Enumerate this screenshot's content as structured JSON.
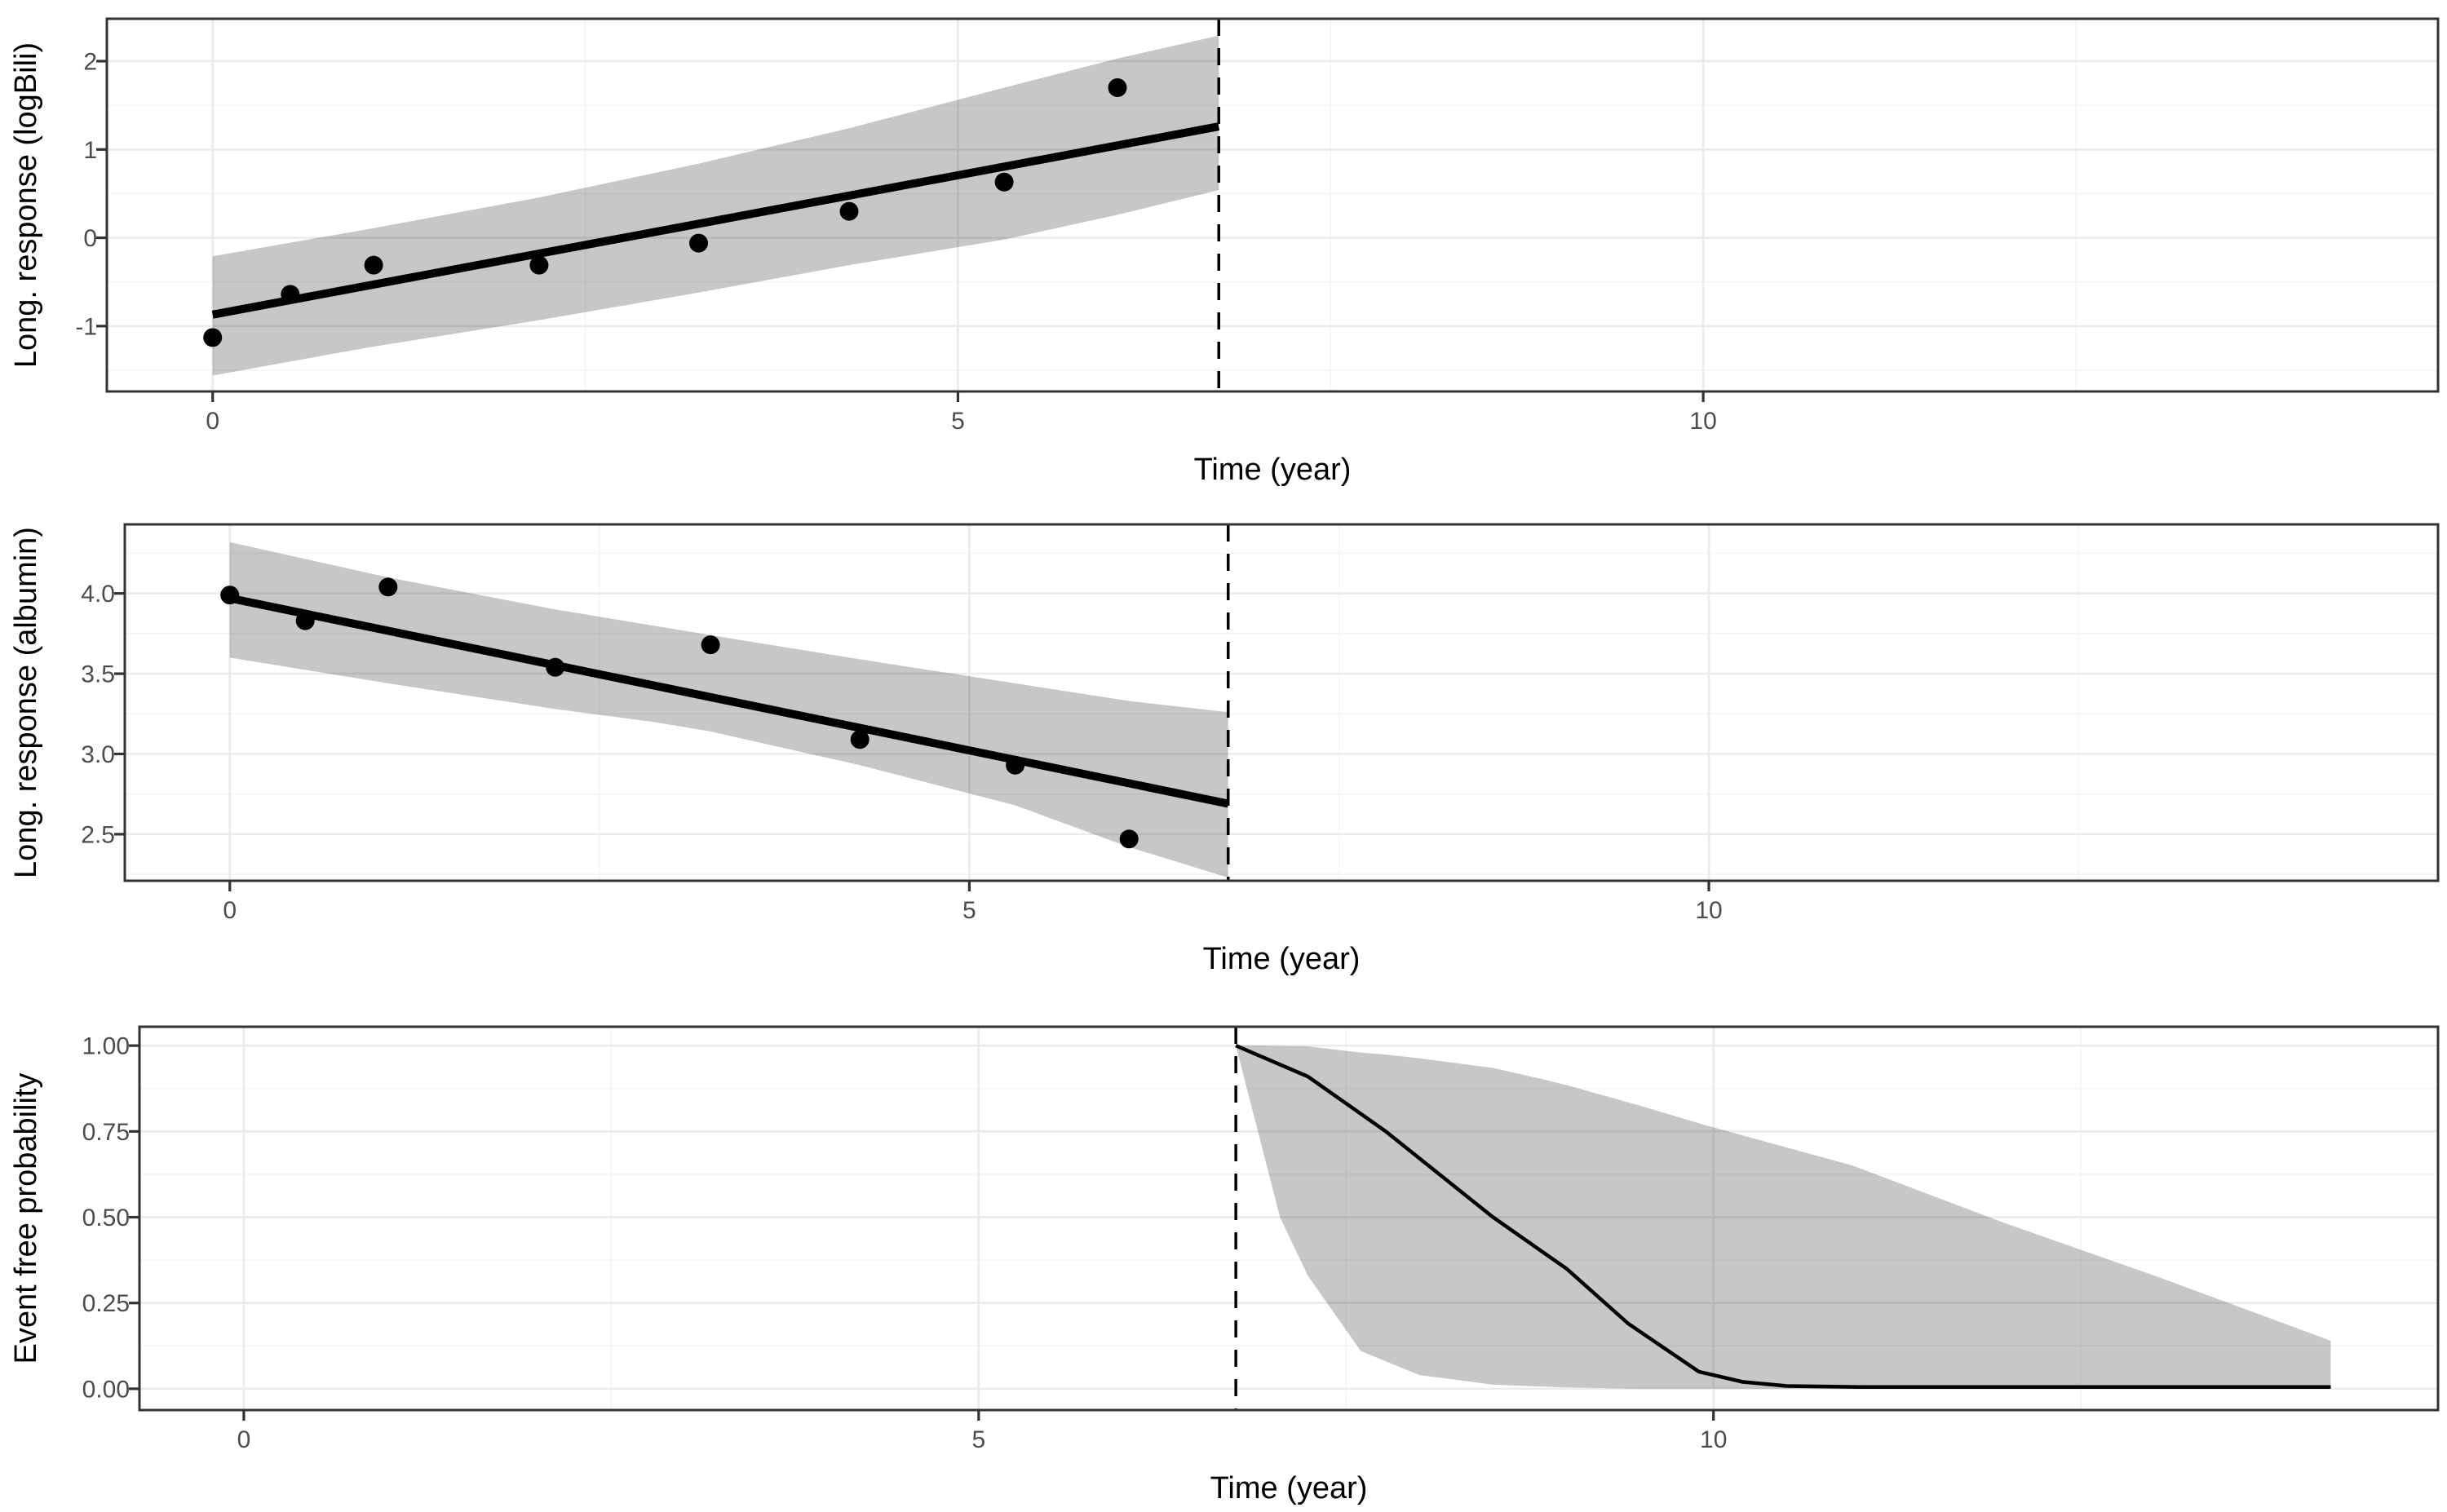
{
  "figure": {
    "background": "#FFFFFF",
    "colors": {
      "ribbon_fill": "rgba(0,0,0,0.22)",
      "grid_major": "#EBEBEB",
      "grid_minor": "#F4F4F4",
      "panel_border": "#333333",
      "tick_mark": "#333333",
      "tick_label": "#4D4D4D",
      "axis_title": "#000000",
      "fit_line": "#000000",
      "surv_line": "#000000",
      "vline": "#000000",
      "point": "#000000"
    }
  },
  "chart_data": [
    {
      "type": "line",
      "name": "logBili",
      "title": "",
      "xlabel": "Time (year)",
      "ylabel": "Long. response (logBili)",
      "xlim": [
        -0.71,
        14.93
      ],
      "ylim": [
        -1.74,
        2.48
      ],
      "xticks": {
        "values": [
          0,
          5,
          10
        ],
        "labels": [
          "0",
          "5",
          "10"
        ]
      },
      "xminor": [
        2.5,
        7.5,
        12.5
      ],
      "yticks": {
        "values": [
          2,
          1,
          0,
          -1
        ],
        "labels": [
          "2",
          "1",
          "0",
          "-1"
        ]
      },
      "yminor": [
        1.5,
        0.5,
        -0.5,
        -1.5
      ],
      "grid": "on",
      "legend": "none",
      "vline_x": 6.75,
      "ribbon": {
        "x": [
          0,
          1.05,
          2.2,
          3.26,
          4.27,
          5.31,
          6.07,
          6.75
        ],
        "upper": [
          -0.21,
          0.1,
          0.46,
          0.84,
          1.24,
          1.7,
          2.03,
          2.29
        ],
        "lower": [
          -1.56,
          -1.24,
          -0.93,
          -0.62,
          -0.31,
          -0.02,
          0.26,
          0.54
        ]
      },
      "fit": {
        "x": [
          0,
          6.75
        ],
        "y": [
          -0.87,
          1.26
        ]
      },
      "points": {
        "x": [
          0,
          0.52,
          1.08,
          2.19,
          3.26,
          4.27,
          5.31,
          6.07
        ],
        "y": [
          -1.13,
          -0.64,
          -0.31,
          -0.31,
          -0.06,
          0.3,
          0.63,
          1.7
        ]
      }
    },
    {
      "type": "line",
      "name": "albumin",
      "title": "",
      "xlabel": "Time (year)",
      "ylabel": "Long. response (albumin)",
      "xlim": [
        -0.71,
        14.93
      ],
      "ylim": [
        2.21,
        4.43
      ],
      "xticks": {
        "values": [
          0,
          5,
          10
        ],
        "labels": [
          "0",
          "5",
          "10"
        ]
      },
      "xminor": [
        2.5,
        7.5,
        12.5
      ],
      "yticks": {
        "values": [
          4.0,
          3.5,
          3.0,
          2.5
        ],
        "labels": [
          "4.0",
          "3.5",
          "3.0",
          "2.5"
        ]
      },
      "yminor": [
        4.25,
        3.75,
        3.25,
        2.75,
        2.25
      ],
      "grid": "on",
      "legend": "none",
      "vline_x": 6.75,
      "ribbon": {
        "x": [
          0,
          1.07,
          2.2,
          2.86,
          3.25,
          4.26,
          5.31,
          6.08,
          6.75
        ],
        "upper": [
          4.32,
          4.1,
          3.9,
          3.8,
          3.74,
          3.59,
          3.44,
          3.33,
          3.26
        ],
        "lower": [
          3.6,
          3.44,
          3.28,
          3.2,
          3.14,
          2.93,
          2.68,
          2.42,
          2.23
        ]
      },
      "fit": {
        "x": [
          0,
          6.75
        ],
        "y": [
          3.97,
          2.69
        ]
      },
      "points": {
        "x": [
          0,
          0.51,
          1.07,
          2.2,
          3.25,
          4.26,
          5.31,
          6.08
        ],
        "y": [
          3.99,
          3.83,
          4.04,
          3.54,
          3.68,
          3.09,
          2.93,
          2.47
        ]
      }
    },
    {
      "type": "line",
      "name": "survival",
      "title": "",
      "xlabel": "Time (year)",
      "ylabel": "Event free probability",
      "xlim": [
        -0.71,
        14.93
      ],
      "ylim": [
        -0.062,
        1.055
      ],
      "xticks": {
        "values": [
          0,
          5,
          10
        ],
        "labels": [
          "0",
          "5",
          "10"
        ]
      },
      "xminor": [
        2.5,
        7.5,
        12.5
      ],
      "yticks": {
        "values": [
          1.0,
          0.75,
          0.5,
          0.25,
          0.0
        ],
        "labels": [
          "1.00",
          "0.75",
          "0.50",
          "0.25",
          "0.00"
        ]
      },
      "yminor": [
        0.875,
        0.625,
        0.375,
        0.125
      ],
      "grid": "on",
      "legend": "none",
      "vline_x": 6.75,
      "ribbon": {
        "x": [
          6.75,
          6.9,
          7.05,
          7.24,
          7.6,
          7.77,
          8.0,
          8.5,
          8.86,
          9.0,
          9.5,
          9.93,
          10.95,
          12.0,
          13.0,
          14.2
        ],
        "upper": [
          1.0,
          1.0,
          0.999,
          0.998,
          0.98,
          0.974,
          0.963,
          0.935,
          0.9,
          0.885,
          0.825,
          0.77,
          0.65,
          0.48,
          0.33,
          0.14
        ],
        "lower": [
          1.0,
          0.75,
          0.5,
          0.33,
          0.11,
          0.08,
          0.04,
          0.012,
          0.006,
          0.004,
          0.0,
          0.0,
          0.0,
          0.0,
          0.0,
          0.0
        ]
      },
      "fit": {
        "x": [
          6.75,
          7.24,
          7.77,
          8.5,
          9.0,
          9.42,
          9.9,
          10.2,
          10.5,
          11.0,
          14.2
        ],
        "y": [
          1.0,
          0.91,
          0.75,
          0.5,
          0.35,
          0.19,
          0.05,
          0.02,
          0.008,
          0.005,
          0.005
        ]
      },
      "points": null
    }
  ]
}
